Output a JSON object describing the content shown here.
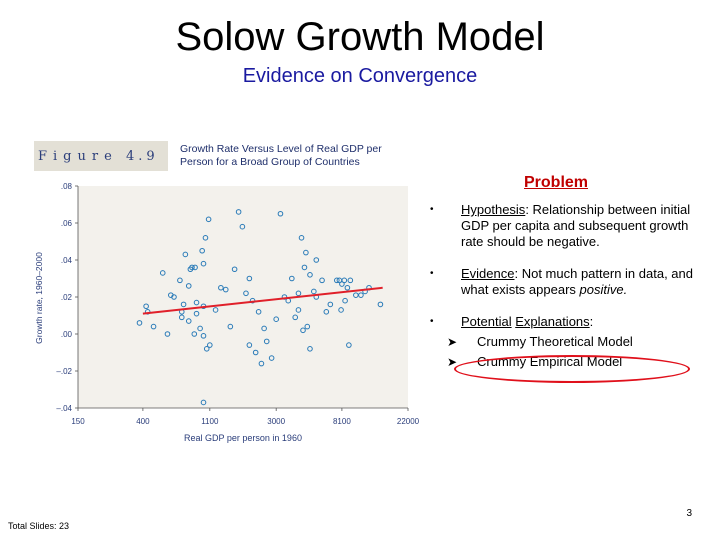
{
  "slide": {
    "title": "Solow Growth Model",
    "subtitle": "Evidence on Convergence",
    "figure_label": "Figure",
    "figure_number": "4.9",
    "figure_caption_line1": "Growth Rate Versus Level of Real GDP per",
    "figure_caption_line2": "Person for a Broad Group of Countries",
    "problem_heading": "Problem",
    "bullets": {
      "hypothesis_term": "Hypothesis",
      "hypothesis_text": ": Relationship between initial GDP per capita and subsequent growth rate should be negative.",
      "evidence_term": "Evidence",
      "evidence_text": ": Not much pattern in data, and what exists appears ",
      "evidence_emphasis": "positive.",
      "explanations_term1": "Potential",
      "explanations_term2": "Explanations",
      "explanations_colon": ":",
      "sub1": "Crummy Theoretical Model",
      "sub2": "Crummy Empirical Model"
    },
    "page_number": "3",
    "total_slides": "Total Slides: 23"
  },
  "colors": {
    "title": "#000000",
    "subtitle": "#1a1aa0",
    "problem": "#c00000",
    "marker": "#2a7bb8",
    "trend": "#e0202a",
    "highlight_ellipse": "#e0101b",
    "plot_background": "#f3f1ec",
    "figure_band": "#e3e0d6"
  },
  "icons": {
    "bullet": "bullet-dot-icon",
    "sub_arrow": "arrow-right-icon"
  },
  "chart_data": {
    "type": "scatter",
    "xscale": "log",
    "xlabel": "Real GDP per person in 1960",
    "ylabel": "Growth rate, 1960–2000",
    "xticks": [
      {
        "value": 150,
        "label": "150"
      },
      {
        "value": 400,
        "label": "400"
      },
      {
        "value": 1100,
        "label": "1100"
      },
      {
        "value": 3000,
        "label": "3000"
      },
      {
        "value": 8100,
        "label": "8100"
      },
      {
        "value": 22000,
        "label": "22000"
      }
    ],
    "yticks": [
      {
        "value": 0.08,
        "label": ".08"
      },
      {
        "value": 0.06,
        "label": ".06"
      },
      {
        "value": 0.04,
        "label": ".04"
      },
      {
        "value": 0.02,
        "label": ".02"
      },
      {
        "value": 0.0,
        "label": ".00"
      },
      {
        "value": -0.02,
        "label": "–.02"
      },
      {
        "value": -0.04,
        "label": "–.04"
      }
    ],
    "xlim": [
      150,
      22000
    ],
    "ylim": [
      -0.04,
      0.08
    ],
    "grid": false,
    "points": [
      [
        420,
        0.015
      ],
      [
        430,
        0.012
      ],
      [
        470,
        0.004
      ],
      [
        380,
        0.006
      ],
      [
        540,
        0.033
      ],
      [
        610,
        0.021
      ],
      [
        640,
        0.02
      ],
      [
        700,
        0.029
      ],
      [
        720,
        0.012
      ],
      [
        800,
        0.026
      ],
      [
        820,
        0.035
      ],
      [
        840,
        0.036
      ],
      [
        880,
        0.036
      ],
      [
        760,
        0.043
      ],
      [
        1000,
        0.038
      ],
      [
        1030,
        0.052
      ],
      [
        1080,
        0.062
      ],
      [
        980,
        0.045
      ],
      [
        900,
        0.017
      ],
      [
        740,
        0.016
      ],
      [
        720,
        0.009
      ],
      [
        800,
        0.007
      ],
      [
        900,
        0.011
      ],
      [
        1000,
        0.015
      ],
      [
        950,
        0.003
      ],
      [
        870,
        0.0
      ],
      [
        1000,
        -0.001
      ],
      [
        1100,
        -0.006
      ],
      [
        1050,
        -0.008
      ],
      [
        1200,
        0.013
      ],
      [
        1300,
        0.025
      ],
      [
        1400,
        0.024
      ],
      [
        1500,
        0.004
      ],
      [
        1700,
        0.066
      ],
      [
        1800,
        0.058
      ],
      [
        1600,
        0.035
      ],
      [
        2000,
        0.03
      ],
      [
        1900,
        0.022
      ],
      [
        2100,
        0.018
      ],
      [
        2300,
        0.012
      ],
      [
        2500,
        0.003
      ],
      [
        2200,
        -0.01
      ],
      [
        2000,
        -0.006
      ],
      [
        2400,
        -0.016
      ],
      [
        2800,
        -0.013
      ],
      [
        2600,
        -0.004
      ],
      [
        3000,
        0.008
      ],
      [
        3200,
        0.065
      ],
      [
        3400,
        0.02
      ],
      [
        3600,
        0.018
      ],
      [
        3800,
        0.03
      ],
      [
        4200,
        0.022
      ],
      [
        4000,
        0.009
      ],
      [
        4400,
        0.052
      ],
      [
        4700,
        0.044
      ],
      [
        4600,
        0.036
      ],
      [
        5000,
        0.032
      ],
      [
        5500,
        0.04
      ],
      [
        5300,
        0.023
      ],
      [
        4200,
        0.013
      ],
      [
        4500,
        0.002
      ],
      [
        4800,
        0.004
      ],
      [
        5000,
        -0.008
      ],
      [
        5500,
        0.02
      ],
      [
        6000,
        0.029
      ],
      [
        6400,
        0.012
      ],
      [
        6800,
        0.016
      ],
      [
        7500,
        0.029
      ],
      [
        7800,
        0.029
      ],
      [
        8100,
        0.027
      ],
      [
        8400,
        0.029
      ],
      [
        8000,
        0.013
      ],
      [
        8800,
        0.025
      ],
      [
        8500,
        0.018
      ],
      [
        9200,
        0.029
      ],
      [
        10000,
        0.021
      ],
      [
        10800,
        0.021
      ],
      [
        11500,
        0.023
      ],
      [
        12200,
        0.025
      ],
      [
        14500,
        0.016
      ],
      [
        9000,
        -0.006
      ],
      [
        1000,
        -0.037
      ],
      [
        580,
        0.0
      ]
    ],
    "trendline": {
      "x": [
        400,
        15000
      ],
      "y": [
        0.011,
        0.025
      ]
    }
  }
}
